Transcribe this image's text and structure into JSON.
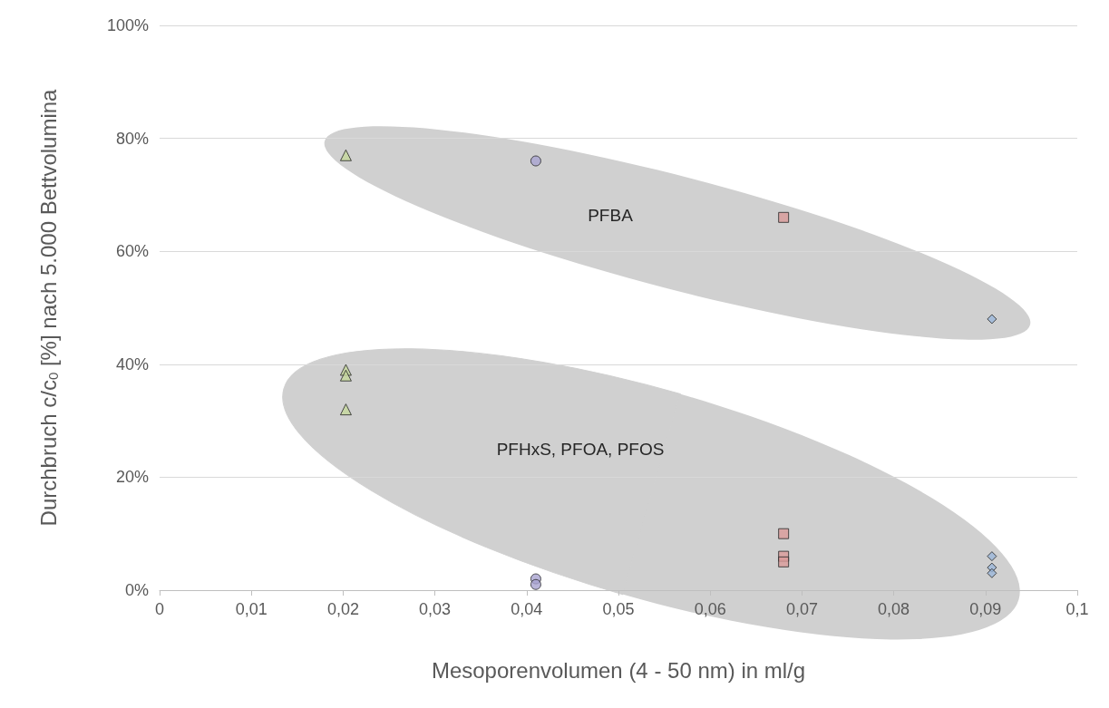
{
  "chart_data": {
    "type": "scatter",
    "xlabel": "Mesoporenvolumen (4 - 50 nm) in ml/g",
    "ylabel": "Durchbruch c/c$_{0}$ [%] nach 5.000 Bettvolumina",
    "xlim": [
      0,
      0.1
    ],
    "xticks": [
      {
        "value": 0,
        "label": "0"
      },
      {
        "value": 0.01,
        "label": "0,01"
      },
      {
        "value": 0.02,
        "label": "0,02"
      },
      {
        "value": 0.03,
        "label": "0,03"
      },
      {
        "value": 0.04,
        "label": "0,04"
      },
      {
        "value": 0.05,
        "label": "0,05"
      },
      {
        "value": 0.06,
        "label": "0,06"
      },
      {
        "value": 0.07,
        "label": "0,07"
      },
      {
        "value": 0.08,
        "label": "0,08"
      },
      {
        "value": 0.09,
        "label": "0,09"
      },
      {
        "value": 0.1,
        "label": "0,1"
      }
    ],
    "ylim": [
      0,
      100
    ],
    "yticks": [
      {
        "value": 0,
        "label": "0%"
      },
      {
        "value": 20,
        "label": "20%"
      },
      {
        "value": 40,
        "label": "40%"
      },
      {
        "value": 60,
        "label": "60%"
      },
      {
        "value": 80,
        "label": "80%"
      },
      {
        "value": 100,
        "label": "100%"
      }
    ],
    "grid": "y",
    "series": [
      {
        "color": "#d99a98",
        "marker": "square",
        "x": [
          0.068,
          0.068,
          0.068,
          0.068
        ],
        "values": [
          66,
          10,
          6,
          5
        ]
      },
      {
        "color": "#9bb7d9",
        "marker": "diamond",
        "x": [
          0.0907,
          0.0907,
          0.0907,
          0.0907
        ],
        "values": [
          48,
          6,
          4,
          3
        ]
      },
      {
        "color": "#c4d79b",
        "marker": "triangle",
        "x": [
          0.0203,
          0.0203,
          0.0203,
          0.0203
        ],
        "values": [
          77,
          39,
          38,
          32
        ]
      },
      {
        "color": "#a7a2cf",
        "marker": "circle",
        "x": [
          0.041,
          0.041,
          0.041
        ],
        "values": [
          76,
          2,
          1
        ]
      }
    ],
    "annotations": [
      "PFBA",
      "PFHxS, PFOA, PFOS"
    ]
  }
}
